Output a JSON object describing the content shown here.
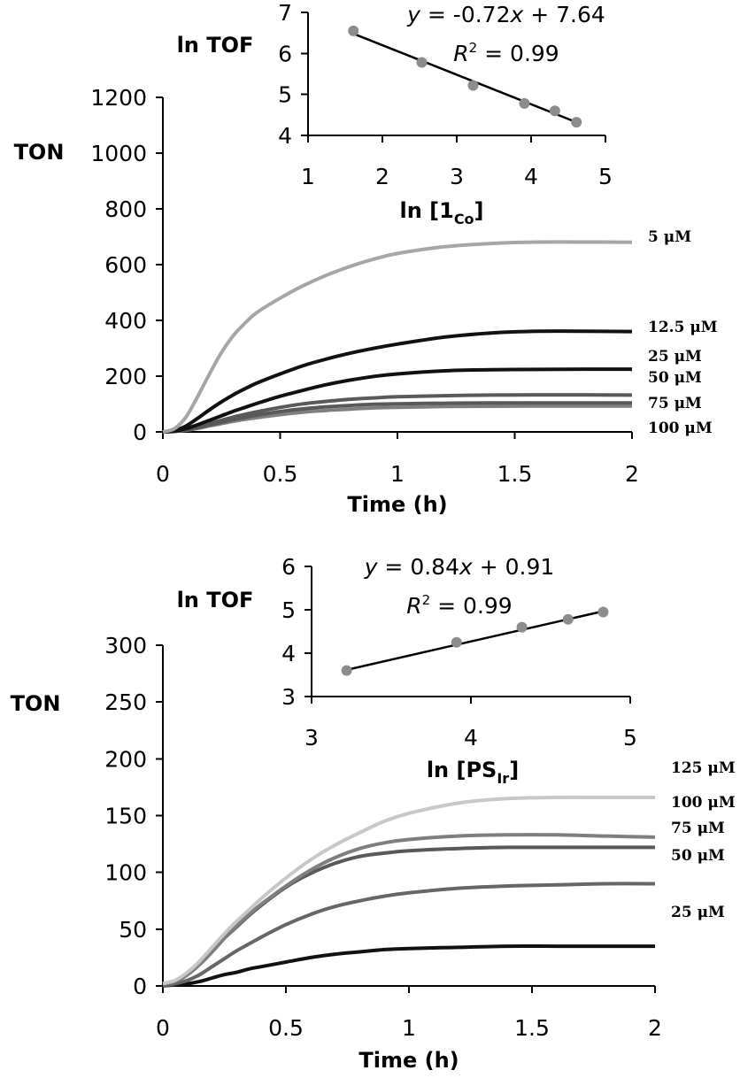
{
  "chart_data": [
    {
      "id": "main_top",
      "type": "line",
      "ylabel": "TON",
      "xlabel": "Time (h)",
      "xlim": [
        0,
        2
      ],
      "ylim": [
        0,
        1200
      ],
      "xticks": [
        0,
        0.5,
        1,
        1.5,
        2
      ],
      "xtick_labels": [
        "0",
        "0.5",
        "1",
        "1.5",
        "2"
      ],
      "yticks": [
        0,
        200,
        400,
        600,
        800,
        1000,
        1200
      ],
      "ytick_labels": [
        "0",
        "200",
        "400",
        "600",
        "800",
        "1000",
        "1200"
      ],
      "x": [
        0,
        0.05,
        0.1,
        0.15,
        0.2,
        0.25,
        0.3,
        0.35,
        0.4,
        0.5,
        0.6,
        0.7,
        0.8,
        0.9,
        1.0,
        1.2,
        1.4,
        1.6,
        1.8,
        2.0
      ],
      "series": [
        {
          "name": "5 μM",
          "color": "#a6a6a6",
          "values": [
            0,
            12,
            55,
            130,
            210,
            285,
            345,
            390,
            428,
            480,
            525,
            563,
            594,
            620,
            640,
            664,
            676,
            681,
            681,
            680
          ]
        },
        {
          "name": "12.5 μM",
          "color": "#111111",
          "values": [
            0,
            5,
            22,
            50,
            80,
            108,
            133,
            155,
            175,
            208,
            238,
            262,
            283,
            300,
            315,
            340,
            355,
            361,
            361,
            360
          ]
        },
        {
          "name": "25 μM",
          "color": "#111111",
          "values": [
            0,
            3,
            12,
            26,
            42,
            58,
            74,
            88,
            102,
            128,
            150,
            170,
            186,
            199,
            208,
            219,
            223,
            224,
            225,
            225
          ]
        },
        {
          "name": "50 μM",
          "color": "#595959",
          "values": [
            0,
            2,
            8,
            18,
            30,
            42,
            53,
            63,
            72,
            88,
            101,
            110,
            117,
            122,
            126,
            130,
            132,
            133,
            133,
            132
          ]
        },
        {
          "name": "75 μM",
          "color": "#595959",
          "values": [
            0,
            2,
            7,
            15,
            25,
            35,
            44,
            52,
            60,
            73,
            83,
            90,
            95,
            99,
            101,
            103,
            104,
            104,
            104,
            104
          ]
        },
        {
          "name": "100 μM",
          "color": "#7f7f7f",
          "values": [
            0,
            2,
            6,
            13,
            22,
            30,
            38,
            45,
            51,
            62,
            71,
            77,
            82,
            86,
            88,
            91,
            92,
            93,
            93,
            93
          ]
        }
      ]
    },
    {
      "id": "inset_top",
      "type": "scatter",
      "ylabel": "ln TOF",
      "xlabel_main": "ln [1",
      "xlabel_sub": "Co",
      "xlabel_end": "]",
      "xlim": [
        1,
        5
      ],
      "ylim": [
        4,
        7
      ],
      "xticks": [
        1,
        2,
        3,
        4,
        5
      ],
      "xtick_labels": [
        "1",
        "2",
        "3",
        "4",
        "5"
      ],
      "yticks": [
        4,
        5,
        6,
        7
      ],
      "ytick_labels": [
        "4",
        "5",
        "6",
        "7"
      ],
      "points": {
        "x": [
          1.61,
          2.53,
          3.22,
          3.91,
          4.32,
          4.61
        ],
        "y": [
          6.55,
          5.78,
          5.22,
          4.78,
          4.6,
          4.32
        ]
      },
      "fit": {
        "slope": -0.72,
        "intercept": 7.64,
        "x_range": [
          1.61,
          4.61
        ]
      },
      "equation": {
        "y": "y",
        "eq_rest": " = -0.72",
        "x": "x",
        "tail": " + 7.64"
      },
      "r2": {
        "R": "R",
        "sup": "2",
        "rest": " = 0.99"
      }
    },
    {
      "id": "main_bottom",
      "type": "line",
      "ylabel": "TON",
      "xlabel": "Time (h)",
      "xlim": [
        0,
        2
      ],
      "ylim": [
        0,
        300
      ],
      "xticks": [
        0,
        0.5,
        1,
        1.5,
        2
      ],
      "xtick_labels": [
        "0",
        "0.5",
        "1",
        "1.5",
        "2"
      ],
      "yticks": [
        0,
        50,
        100,
        150,
        200,
        250,
        300
      ],
      "ytick_labels": [
        "0",
        "50",
        "100",
        "150",
        "200",
        "250",
        "300"
      ],
      "x": [
        0,
        0.05,
        0.1,
        0.15,
        0.2,
        0.25,
        0.3,
        0.35,
        0.4,
        0.5,
        0.6,
        0.7,
        0.8,
        0.9,
        1.0,
        1.2,
        1.4,
        1.6,
        1.8,
        2.0
      ],
      "series": [
        {
          "name": "125 μM",
          "color": "#c8c8c8",
          "values": [
            2,
            5,
            12,
            22,
            34,
            46,
            57,
            67,
            77,
            95,
            111,
            124,
            135,
            145,
            152,
            161,
            165,
            166,
            166,
            166
          ]
        },
        {
          "name": "100 μM",
          "color": "#7f7f7f",
          "values": [
            2,
            4,
            10,
            19,
            30,
            42,
            53,
            63,
            72,
            88,
            102,
            113,
            121,
            126,
            129,
            132,
            133,
            133,
            132,
            131
          ]
        },
        {
          "name": "75 μM",
          "color": "#595959",
          "values": [
            2,
            4,
            10,
            19,
            30,
            42,
            52,
            62,
            71,
            87,
            99,
            108,
            114,
            117,
            119,
            121,
            122,
            122,
            122,
            122
          ]
        },
        {
          "name": "50 μM",
          "color": "#666666",
          "values": [
            0,
            2,
            5,
            10,
            17,
            24,
            31,
            37,
            43,
            54,
            63,
            70,
            75,
            79,
            82,
            86,
            88,
            89,
            90,
            90
          ]
        },
        {
          "name": "25 μM",
          "color": "#111111",
          "values": [
            0,
            1,
            2,
            4,
            7,
            10,
            12,
            15,
            17,
            21,
            25,
            28,
            30,
            32,
            33,
            34,
            35,
            35,
            35,
            35
          ]
        }
      ]
    },
    {
      "id": "inset_bottom",
      "type": "scatter",
      "ylabel": "ln TOF",
      "xlabel_main": "ln [PS",
      "xlabel_sub": "Ir",
      "xlabel_end": "]",
      "xlim": [
        3,
        5
      ],
      "ylim": [
        3,
        6
      ],
      "xticks": [
        3,
        4,
        5
      ],
      "xtick_labels": [
        "3",
        "4",
        "5"
      ],
      "yticks": [
        3,
        4,
        5,
        6
      ],
      "ytick_labels": [
        "3",
        "4",
        "5",
        "6"
      ],
      "points": {
        "x": [
          3.22,
          3.91,
          4.32,
          4.61,
          4.83
        ],
        "y": [
          3.6,
          4.25,
          4.6,
          4.78,
          4.95
        ]
      },
      "fit": {
        "slope": 0.84,
        "intercept": 0.91,
        "x_range": [
          3.22,
          4.83
        ]
      },
      "equation": {
        "y": "y",
        "eq_rest": " = 0.84",
        "x": "x",
        "tail": " + 0.91"
      },
      "r2": {
        "R": "R",
        "sup": "2",
        "rest": " = 0.99"
      }
    }
  ]
}
